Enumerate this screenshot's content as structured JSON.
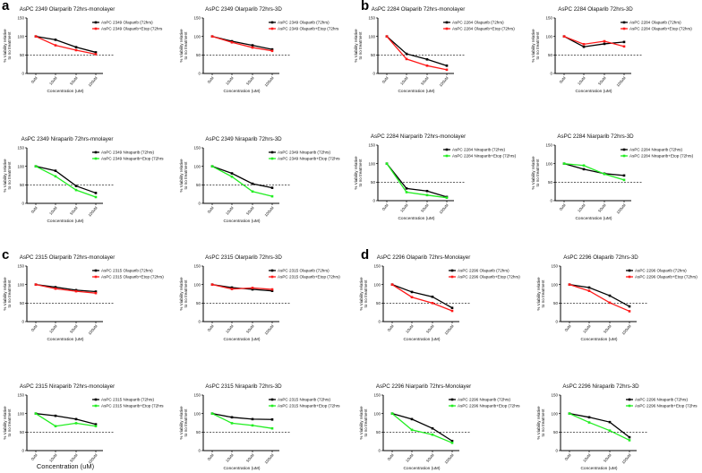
{
  "panel_labels": [
    "a",
    "b",
    "c",
    "d"
  ],
  "colors": {
    "control": "#000000",
    "olaparib_etop": "#ff1a1a",
    "niraparib_etop": "#22ee22"
  },
  "chart_data": [
    {
      "type": "line",
      "title": "AsPC 2349 Olarparib 72hrs-monolayer",
      "xlabel": "Concentration (uM)",
      "ylabel": [
        "% Viability relative",
        "to no treatment"
      ],
      "categories": [
        "0uM",
        "10uM",
        "50uM",
        "100uM"
      ],
      "yticks": [
        0,
        50,
        100,
        150
      ],
      "ylim": [
        0,
        150
      ],
      "reference_line": 50,
      "series": [
        {
          "name": "AsPC 2349 Olaparib (72hrs)",
          "color": "#000000",
          "values": [
            100,
            91,
            71,
            57
          ]
        },
        {
          "name": "AsPC 2349 Olaparib+Etop (72hrs",
          "color": "#ff1a1a",
          "values": [
            100,
            76,
            63,
            52
          ]
        }
      ]
    },
    {
      "type": "line",
      "title": "AsPC 2349 Olarparib 72hrs-3D",
      "xlabel": "Concentration (uM)",
      "ylabel": [
        "% Viability relative",
        "to no treatment"
      ],
      "categories": [
        "0uM",
        "10uM",
        "50uM",
        "100uM"
      ],
      "yticks": [
        0,
        50,
        100,
        150
      ],
      "ylim": [
        0,
        150
      ],
      "reference_line": 50,
      "series": [
        {
          "name": "AsPC 2349 Olaparib (72hrs)",
          "color": "#000000",
          "values": [
            100,
            87,
            76,
            65
          ]
        },
        {
          "name": "AsPC 2349 Olaparib+Etop (72hrs",
          "color": "#ff1a1a",
          "values": [
            100,
            84,
            70,
            61
          ]
        }
      ]
    },
    {
      "type": "line",
      "title": "AsPC 2349 Niraparib 72hrs-mnolayer",
      "xlabel": "Concentration (uM)",
      "ylabel": [
        "% Viability relative",
        "to no treatment"
      ],
      "categories": [
        "0uM",
        "10uM",
        "50uM",
        "100uM"
      ],
      "yticks": [
        0,
        50,
        100,
        150
      ],
      "ylim": [
        0,
        150
      ],
      "reference_line": 50,
      "series": [
        {
          "name": "AsPC 2349 Niraparib (72hrs)",
          "color": "#000000",
          "values": [
            100,
            88,
            47,
            28
          ]
        },
        {
          "name": "AsPC 2349 Niraparib+Etop (72hrs",
          "color": "#22ee22",
          "values": [
            100,
            73,
            36,
            17
          ]
        }
      ]
    },
    {
      "type": "line",
      "title": "AsPC 2349 Niraparib 72hrs-3D",
      "xlabel": "Concentration (uM)",
      "ylabel": [
        "% Viability relative",
        "to no treatment"
      ],
      "categories": [
        "0uM",
        "10uM",
        "50uM",
        "100uM"
      ],
      "yticks": [
        0,
        50,
        100,
        150
      ],
      "ylim": [
        0,
        150
      ],
      "reference_line": 50,
      "series": [
        {
          "name": "AsPC 2349 Niraparib (72hrs)",
          "color": "#000000",
          "values": [
            100,
            81,
            53,
            42
          ]
        },
        {
          "name": "AsPC 2349 Niraparib+Etop (72hrs",
          "color": "#22ee22",
          "values": [
            100,
            72,
            32,
            19
          ]
        }
      ]
    },
    {
      "type": "line",
      "title": "AsPC 2284 Olaparib 72hrs-monolayer",
      "xlabel": "Concentration (uM)",
      "ylabel": [
        "% Viability relative",
        "to no treatment"
      ],
      "categories": [
        "0uM",
        "10uM",
        "50uM",
        "100uM"
      ],
      "yticks": [
        0,
        50,
        100,
        150
      ],
      "ylim": [
        0,
        150
      ],
      "reference_line": 50,
      "series": [
        {
          "name": "AsPC 2284 Olaparib (72hrs)",
          "color": "#000000",
          "values": [
            100,
            53,
            38,
            21
          ]
        },
        {
          "name": "AsPC 2284 Olaparib+Etop (72hrs)",
          "color": "#ff1a1a",
          "values": [
            100,
            39,
            21,
            10
          ]
        }
      ]
    },
    {
      "type": "line",
      "title": "AsPC 2284 Olaparib 72hrs-3D",
      "xlabel": "Concentration (uM)",
      "ylabel": [
        "% Viability relative",
        "to no treatment"
      ],
      "categories": [
        "0uM",
        "10uM",
        "50uM",
        "100uM"
      ],
      "yticks": [
        0,
        50,
        100,
        150
      ],
      "ylim": [
        0,
        150
      ],
      "reference_line": 50,
      "series": [
        {
          "name": "AsPC 2284 Olaparib (72hrs)",
          "color": "#000000",
          "values": [
            100,
            72,
            80,
            85
          ]
        },
        {
          "name": "AsPC 2284 Olaparib+Etop (72hrs)",
          "color": "#ff1a1a",
          "values": [
            100,
            79,
            87,
            73
          ]
        }
      ]
    },
    {
      "type": "line",
      "title": "AsPC 2284 Niarparib 72hrs-monolayer",
      "xlabel": "Concentration (uM)",
      "ylabel": [
        "% Viability relative",
        "to no treatment"
      ],
      "categories": [
        "0uM",
        "10uM",
        "50uM",
        "100uM"
      ],
      "yticks": [
        0,
        50,
        100,
        150
      ],
      "ylim": [
        0,
        150
      ],
      "reference_line": 50,
      "series": [
        {
          "name": "AsPC 2284 Niraparib (72hrs)",
          "color": "#000000",
          "values": [
            100,
            33,
            26,
            10
          ]
        },
        {
          "name": "AsPC 2284 Niraparib+Etop (72hrs)",
          "color": "#22ee22",
          "values": [
            100,
            23,
            15,
            8
          ]
        }
      ]
    },
    {
      "type": "line",
      "title": "AsPC 2284 Niarparib 72hrs-3D",
      "xlabel": "Concentration (uM)",
      "ylabel": [
        "% Viability relative",
        "to no treatment"
      ],
      "categories": [
        "0uM",
        "10uM",
        "50uM",
        "100uM"
      ],
      "yticks": [
        0,
        50,
        100,
        150
      ],
      "ylim": [
        0,
        150
      ],
      "reference_line": 50,
      "series": [
        {
          "name": "AsPC 2284 Niraparib (72hrs)",
          "color": "#000000",
          "values": [
            100,
            85,
            73,
            68
          ]
        },
        {
          "name": "AsPC 2284 Niraparib+Etop (72hrs)",
          "color": "#22ee22",
          "values": [
            100,
            95,
            72,
            56
          ]
        }
      ]
    },
    {
      "type": "line",
      "title": "AsPC 2315 Olarparib 72hrs-monolayer",
      "xlabel": "Concentration (uM)",
      "ylabel": [
        "% Viability relative",
        "to no treatment"
      ],
      "categories": [
        "0uM",
        "10uM",
        "50uM",
        "100uM"
      ],
      "yticks": [
        0,
        50,
        100,
        150
      ],
      "ylim": [
        0,
        150
      ],
      "reference_line": 50,
      "series": [
        {
          "name": "AsPC 2315 Olaparib (72hrs)",
          "color": "#000000",
          "values": [
            100,
            93,
            85,
            81
          ]
        },
        {
          "name": "AsPC 2315 Olaparib+Etop (72hrs)",
          "color": "#ff1a1a",
          "values": [
            100,
            89,
            82,
            77
          ]
        }
      ]
    },
    {
      "type": "line",
      "title": "AsPC 2315 Olarparib 72hrs-3D",
      "xlabel": "Concentration (uM)",
      "ylabel": [
        "% Viability relative",
        "to no treatment"
      ],
      "categories": [
        "0uM",
        "10uM",
        "50uM",
        "100uM"
      ],
      "yticks": [
        0,
        50,
        100,
        150
      ],
      "ylim": [
        0,
        150
      ],
      "reference_line": 50,
      "series": [
        {
          "name": "AsPC 2315 Olaparib (72hrs)",
          "color": "#000000",
          "values": [
            100,
            92,
            87,
            83
          ]
        },
        {
          "name": "AsPC 2315 Olaparib+Etop (72hrs)",
          "color": "#ff1a1a",
          "values": [
            100,
            88,
            91,
            87
          ]
        }
      ]
    },
    {
      "type": "line",
      "title": "AsPC 2315 Niraparib 72hrs-monolayer",
      "xlabel": "Concentration (uM)",
      "ylabel": [
        "% Viability relative",
        "to no treatment"
      ],
      "categories": [
        "0uM",
        "10uM",
        "50uM",
        "100uM"
      ],
      "yticks": [
        0,
        50,
        100,
        150
      ],
      "ylim": [
        0,
        150
      ],
      "reference_line": 50,
      "series": [
        {
          "name": "AsPC 2315 Niraparib (72hrs)",
          "color": "#000000",
          "values": [
            100,
            94,
            85,
            71
          ]
        },
        {
          "name": "AsPC 2315 Niraparib+Etop (72hrs",
          "color": "#22ee22",
          "values": [
            100,
            66,
            74,
            66
          ]
        }
      ]
    },
    {
      "type": "line",
      "title": "AsPC 2315 Niraparib 72hrs-3D",
      "xlabel": "Concentration (uM)",
      "ylabel": [
        "% Viability relative",
        "to no treatment"
      ],
      "categories": [
        "0uM",
        "10uM",
        "50uM",
        "100uM"
      ],
      "yticks": [
        0,
        50,
        100,
        150
      ],
      "ylim": [
        0,
        150
      ],
      "reference_line": 50,
      "series": [
        {
          "name": "AsPC 2315 Niraparib (72hrs)",
          "color": "#000000",
          "values": [
            100,
            90,
            85,
            84
          ]
        },
        {
          "name": "AsPC 2315 Niraparib+Etop (72hrs",
          "color": "#22ee22",
          "values": [
            100,
            74,
            68,
            60
          ]
        }
      ]
    },
    {
      "type": "line",
      "title": "AsPC 2296 Olaparib 72hrs-Monolayer",
      "xlabel": "Concentration (uM)",
      "ylabel": [
        "% Viability relative",
        "to no treatment"
      ],
      "categories": [
        "0uM",
        "10uM",
        "50uM",
        "100uM"
      ],
      "yticks": [
        0,
        50,
        100,
        150
      ],
      "ylim": [
        0,
        150
      ],
      "reference_line": 50,
      "series": [
        {
          "name": "AsPC 2296 Olaparib (72hrs)",
          "color": "#000000",
          "values": [
            100,
            80,
            67,
            37
          ]
        },
        {
          "name": "AsPC 2296 Olaparib+Etop (72hrs)",
          "color": "#ff1a1a",
          "values": [
            100,
            66,
            50,
            29
          ]
        }
      ]
    },
    {
      "type": "line",
      "title": "AsPC 2296 Olaparib 72hrs-3D",
      "xlabel": "Concentration (uM)",
      "ylabel": [
        "% Viability relative",
        "to no treatment"
      ],
      "categories": [
        "0uM",
        "10uM",
        "50uM",
        "100uM"
      ],
      "yticks": [
        0,
        50,
        100,
        150
      ],
      "ylim": [
        0,
        150
      ],
      "reference_line": 50,
      "series": [
        {
          "name": "AsPC 2296 Olaparib (72hrs)",
          "color": "#000000",
          "values": [
            100,
            92,
            70,
            41
          ]
        },
        {
          "name": "AsPC 2296 Olaparib+Etop (72hrs)",
          "color": "#ff1a1a",
          "values": [
            100,
            83,
            51,
            28
          ]
        }
      ]
    },
    {
      "type": "line",
      "title": "AsPC 2296 Niarparib 72hrs-Monolayer",
      "xlabel": "Concentration (uM)",
      "ylabel": [
        "% Viability relative",
        "to no treatment"
      ],
      "categories": [
        "0uM",
        "10uM",
        "50uM",
        "100uM"
      ],
      "yticks": [
        0,
        50,
        100,
        150
      ],
      "ylim": [
        0,
        150
      ],
      "reference_line": 50,
      "series": [
        {
          "name": "AsPC 2296 Niraparib (72hrs)",
          "color": "#000000",
          "values": [
            100,
            85,
            60,
            26
          ]
        },
        {
          "name": "AsPC 2296 Niraparib+Etop (72hrs",
          "color": "#22ee22",
          "values": [
            100,
            56,
            43,
            21
          ]
        }
      ]
    },
    {
      "type": "line",
      "title": "AsPC 2296 Niraparib 72hrs-3D",
      "xlabel": "Concentration (uM)",
      "ylabel": [
        "% Viability relative",
        "to no treatment"
      ],
      "categories": [
        "0uM",
        "10uM",
        "50uM",
        "100uM"
      ],
      "yticks": [
        0,
        50,
        100,
        150
      ],
      "ylim": [
        0,
        150
      ],
      "reference_line": 50,
      "series": [
        {
          "name": "AsPC 2296 Niraparib (72hrs)",
          "color": "#000000",
          "values": [
            100,
            90,
            77,
            36
          ]
        },
        {
          "name": "AsPC 2296 Niraparib+Etop (72hrs",
          "color": "#22ee22",
          "values": [
            100,
            76,
            54,
            28
          ]
        }
      ]
    }
  ]
}
